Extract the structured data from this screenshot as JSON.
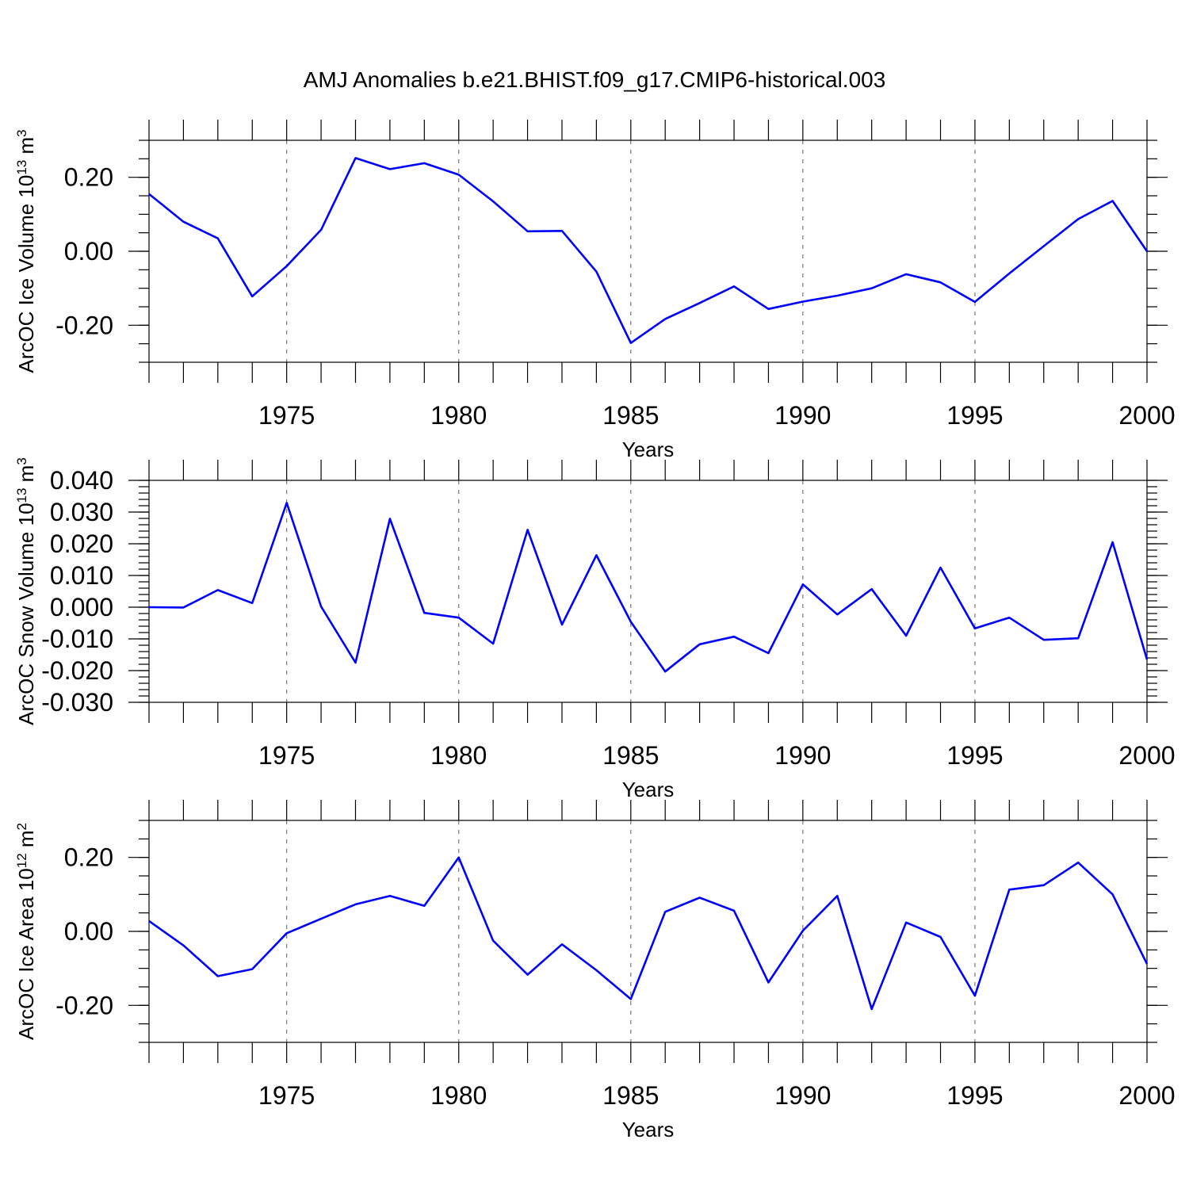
{
  "title": "AMJ Anomalies b.e21.BHIST.f09_g17.CMIP6-historical.003",
  "chart_data": [
    {
      "type": "line",
      "title": "AMJ Anomalies b.e21.BHIST.f09_g17.CMIP6-historical.003",
      "xlabel": "Years",
      "ylabel": {
        "base": "ArcOC Ice Volume 10",
        "exp": "13",
        "unit": " m",
        "unit_exp": "3"
      },
      "xlim": [
        1971,
        2000
      ],
      "ylim": [
        -0.3,
        0.3
      ],
      "xticks": [
        1975,
        1980,
        1985,
        1990,
        1995,
        2000
      ],
      "xtick_labels": [
        "1975",
        "1980",
        "1985",
        "1990",
        "1995",
        "2000"
      ],
      "yticks": [
        -0.2,
        0.0,
        0.2
      ],
      "ytick_labels": [
        "-0.20",
        "0.00",
        "0.20"
      ],
      "yminor_step": 0.05,
      "color": "#0000ff",
      "x": [
        1971,
        1972,
        1973,
        1974,
        1975,
        1976,
        1977,
        1978,
        1979,
        1980,
        1981,
        1982,
        1983,
        1984,
        1985,
        1986,
        1987,
        1988,
        1989,
        1990,
        1991,
        1992,
        1993,
        1994,
        1995,
        1996,
        1997,
        1998,
        1999,
        2000
      ],
      "values": [
        0.155,
        0.08,
        0.035,
        -0.122,
        -0.04,
        0.058,
        0.252,
        0.222,
        0.238,
        0.207,
        0.135,
        0.054,
        0.055,
        -0.055,
        -0.248,
        -0.183,
        -0.14,
        -0.095,
        -0.156,
        -0.136,
        -0.12,
        -0.1,
        -0.062,
        -0.084,
        -0.137,
        -0.06,
        0.014,
        0.087,
        0.136,
        0.0
      ]
    },
    {
      "type": "line",
      "xlabel": "Years",
      "ylabel": {
        "base": "ArcOC Snow Volume 10",
        "exp": "13",
        "unit": " m",
        "unit_exp": "3"
      },
      "xlim": [
        1971,
        2000
      ],
      "ylim": [
        -0.03,
        0.04
      ],
      "xticks": [
        1975,
        1980,
        1985,
        1990,
        1995,
        2000
      ],
      "xtick_labels": [
        "1975",
        "1980",
        "1985",
        "1990",
        "1995",
        "2000"
      ],
      "yticks": [
        -0.03,
        -0.02,
        -0.01,
        0.0,
        0.01,
        0.02,
        0.03,
        0.04
      ],
      "ytick_labels": [
        "-0.030",
        "-0.020",
        "-0.010",
        "0.000",
        "0.010",
        "0.020",
        "0.030",
        "0.040"
      ],
      "yminor_step": 0.002,
      "color": "#0000ff",
      "x": [
        1971,
        1972,
        1973,
        1974,
        1975,
        1976,
        1977,
        1978,
        1979,
        1980,
        1981,
        1982,
        1983,
        1984,
        1985,
        1986,
        1987,
        1988,
        1989,
        1990,
        1991,
        1992,
        1993,
        1994,
        1995,
        1996,
        1997,
        1998,
        1999,
        2000
      ],
      "values": [
        0.0,
        -0.0001,
        0.0054,
        0.0013,
        0.0329,
        0.0002,
        -0.0175,
        0.0279,
        -0.0018,
        -0.0033,
        -0.0115,
        0.0244,
        -0.0055,
        0.0164,
        -0.0046,
        -0.0203,
        -0.0117,
        -0.0093,
        -0.0145,
        0.0072,
        -0.0023,
        0.0057,
        -0.009,
        0.0125,
        -0.0067,
        -0.0033,
        -0.0103,
        -0.0098,
        0.0205,
        -0.0165
      ]
    },
    {
      "type": "line",
      "xlabel": "Years",
      "ylabel": {
        "base": "ArcOC Ice Area 10",
        "exp": "12",
        "unit": " m",
        "unit_exp": "2"
      },
      "xlim": [
        1971,
        2000
      ],
      "ylim": [
        -0.3,
        0.3
      ],
      "xticks": [
        1975,
        1980,
        1985,
        1990,
        1995,
        2000
      ],
      "xtick_labels": [
        "1975",
        "1980",
        "1985",
        "1990",
        "1995",
        "2000"
      ],
      "yticks": [
        -0.2,
        0.0,
        0.2
      ],
      "ytick_labels": [
        "-0.20",
        "0.00",
        "0.20"
      ],
      "yminor_step": 0.05,
      "color": "#0000ff",
      "x": [
        1971,
        1972,
        1973,
        1974,
        1975,
        1976,
        1977,
        1978,
        1979,
        1980,
        1981,
        1982,
        1983,
        1984,
        1985,
        1986,
        1987,
        1988,
        1989,
        1990,
        1991,
        1992,
        1993,
        1994,
        1995,
        1996,
        1997,
        1998,
        1999,
        2000
      ],
      "values": [
        0.028,
        -0.038,
        -0.121,
        -0.102,
        -0.005,
        0.034,
        0.073,
        0.096,
        0.069,
        0.2,
        -0.025,
        -0.117,
        -0.035,
        -0.105,
        -0.183,
        0.053,
        0.091,
        0.056,
        -0.138,
        0.002,
        0.096,
        -0.21,
        0.024,
        -0.015,
        -0.174,
        0.113,
        0.125,
        0.186,
        0.1,
        -0.088
      ]
    }
  ]
}
